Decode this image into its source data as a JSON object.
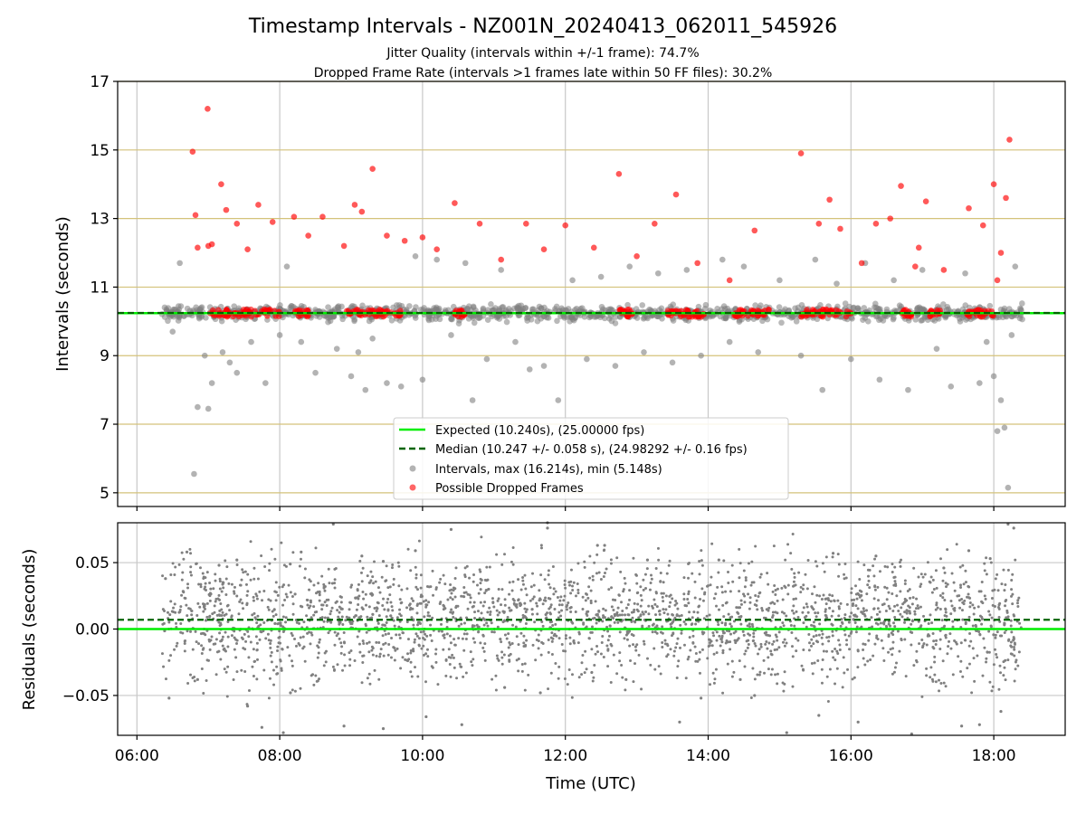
{
  "title": "Timestamp Intervals - NZ001N_20240413_062011_545926",
  "subtitle_lines": [
    "Jitter Quality (intervals within +/-1 frame): 74.7%",
    "Dropped Frame Rate (intervals >1 frames late within 50 FF files): 30.2%"
  ],
  "colors": {
    "expected": "#00ee00",
    "median": "#006400",
    "intervals": "#808080",
    "dropped": "#ff0000",
    "ygrid": "#d4c27a",
    "xgrid": "#c8c8c8"
  },
  "chart_data": [
    {
      "type": "scatter",
      "ylabel": "Intervals (seconds)",
      "ylim": [
        4.6,
        17.0
      ],
      "yticks": [
        "5",
        "7",
        "9",
        "11",
        "13",
        "15",
        "17"
      ],
      "ytick_values": [
        5,
        7,
        9,
        11,
        13,
        15,
        17
      ],
      "xlim_hours": [
        5.73,
        19.0
      ],
      "xtick_hours": [
        6,
        8,
        10,
        12,
        14,
        16,
        18
      ],
      "grid": true,
      "legend_position": "lower center",
      "legend": [
        "Expected (10.240s), (25.00000 fps)",
        "Median (10.247 +/- 0.058 s), (24.98292 +/- 0.16 fps)",
        "Intervals, max (16.214s), min (5.148s)",
        "Possible Dropped Frames"
      ],
      "series": [
        {
          "name": "Expected (10.240s), (25.00000 fps)",
          "kind": "hline",
          "y": 10.24
        },
        {
          "name": "Median (10.247 +/- 0.058 s), (24.98292 +/- 0.16 fps)",
          "kind": "hline-dashed",
          "y": 10.247
        },
        {
          "name": "Intervals, max (16.214s), min (5.148s)",
          "kind": "points",
          "points": [
            [
              6.6,
              11.7
            ],
            [
              6.8,
              5.55
            ],
            [
              6.85,
              7.5
            ],
            [
              7.0,
              7.45
            ],
            [
              7.05,
              8.2
            ],
            [
              6.95,
              9.0
            ],
            [
              7.2,
              9.1
            ],
            [
              7.4,
              8.5
            ],
            [
              7.6,
              9.4
            ],
            [
              7.8,
              8.2
            ],
            [
              8.0,
              9.6
            ],
            [
              8.1,
              11.6
            ],
            [
              8.3,
              9.4
            ],
            [
              8.5,
              8.5
            ],
            [
              8.8,
              9.2
            ],
            [
              9.0,
              8.4
            ],
            [
              9.2,
              8.0
            ],
            [
              9.3,
              9.5
            ],
            [
              9.5,
              8.2
            ],
            [
              9.7,
              8.1
            ],
            [
              9.9,
              11.9
            ],
            [
              10.0,
              8.3
            ],
            [
              10.2,
              11.8
            ],
            [
              10.4,
              9.6
            ],
            [
              10.6,
              11.7
            ],
            [
              10.7,
              7.7
            ],
            [
              10.9,
              8.9
            ],
            [
              11.1,
              11.5
            ],
            [
              11.3,
              9.4
            ],
            [
              11.5,
              8.6
            ],
            [
              11.7,
              8.7
            ],
            [
              11.9,
              7.7
            ],
            [
              12.1,
              11.2
            ],
            [
              12.3,
              8.9
            ],
            [
              12.5,
              11.3
            ],
            [
              12.7,
              8.7
            ],
            [
              12.9,
              11.6
            ],
            [
              13.1,
              9.1
            ],
            [
              13.3,
              11.4
            ],
            [
              13.5,
              8.8
            ],
            [
              13.7,
              11.5
            ],
            [
              13.9,
              9.0
            ],
            [
              14.2,
              11.8
            ],
            [
              14.3,
              9.4
            ],
            [
              14.5,
              11.6
            ],
            [
              14.7,
              9.1
            ],
            [
              15.0,
              11.2
            ],
            [
              15.3,
              9.0
            ],
            [
              15.5,
              11.8
            ],
            [
              15.6,
              8.0
            ],
            [
              15.8,
              11.1
            ],
            [
              16.0,
              8.9
            ],
            [
              16.2,
              11.7
            ],
            [
              16.4,
              8.3
            ],
            [
              16.6,
              11.2
            ],
            [
              16.8,
              8.0
            ],
            [
              17.0,
              11.5
            ],
            [
              17.2,
              9.2
            ],
            [
              17.4,
              8.1
            ],
            [
              17.6,
              11.4
            ],
            [
              17.8,
              8.2
            ],
            [
              17.9,
              9.4
            ],
            [
              18.0,
              8.4
            ],
            [
              18.05,
              6.8
            ],
            [
              18.1,
              7.7
            ],
            [
              18.15,
              6.9
            ],
            [
              18.2,
              5.15
            ],
            [
              18.3,
              11.6
            ],
            [
              18.25,
              9.6
            ],
            [
              6.5,
              9.7
            ],
            [
              7.3,
              8.8
            ],
            [
              9.1,
              9.1
            ]
          ]
        },
        {
          "name": "Possible Dropped Frames",
          "kind": "points",
          "points": [
            [
              6.78,
              14.95
            ],
            [
              6.82,
              13.1
            ],
            [
              6.85,
              12.15
            ],
            [
              6.99,
              16.2
            ],
            [
              7.05,
              12.25
            ],
            [
              7.18,
              14.0
            ],
            [
              7.25,
              13.25
            ],
            [
              7.4,
              12.85
            ],
            [
              7.55,
              12.1
            ],
            [
              7.7,
              13.4
            ],
            [
              7.9,
              12.9
            ],
            [
              8.2,
              13.05
            ],
            [
              8.4,
              12.5
            ],
            [
              8.6,
              13.05
            ],
            [
              8.9,
              12.2
            ],
            [
              9.05,
              13.4
            ],
            [
              9.3,
              14.45
            ],
            [
              9.5,
              12.5
            ],
            [
              9.75,
              12.35
            ],
            [
              10.0,
              12.45
            ],
            [
              10.2,
              12.1
            ],
            [
              10.45,
              13.45
            ],
            [
              10.8,
              12.85
            ],
            [
              11.1,
              11.8
            ],
            [
              11.45,
              12.85
            ],
            [
              11.7,
              12.1
            ],
            [
              12.0,
              12.8
            ],
            [
              12.4,
              12.15
            ],
            [
              12.75,
              14.3
            ],
            [
              13.0,
              11.9
            ],
            [
              13.25,
              12.85
            ],
            [
              13.55,
              13.7
            ],
            [
              13.85,
              11.7
            ],
            [
              14.3,
              11.2
            ],
            [
              14.65,
              12.65
            ],
            [
              15.3,
              14.9
            ],
            [
              15.55,
              12.85
            ],
            [
              15.7,
              13.55
            ],
            [
              15.85,
              12.7
            ],
            [
              16.15,
              11.7
            ],
            [
              16.35,
              12.85
            ],
            [
              16.55,
              13.0
            ],
            [
              16.7,
              13.95
            ],
            [
              16.95,
              12.15
            ],
            [
              17.05,
              13.5
            ],
            [
              17.3,
              11.5
            ],
            [
              17.65,
              13.3
            ],
            [
              17.85,
              12.8
            ],
            [
              18.0,
              14.0
            ],
            [
              18.1,
              12.0
            ],
            [
              18.17,
              13.6
            ],
            [
              18.22,
              15.3
            ],
            [
              18.05,
              11.2
            ],
            [
              7.0,
              12.2
            ],
            [
              9.15,
              13.2
            ],
            [
              16.9,
              11.6
            ]
          ]
        }
      ]
    },
    {
      "type": "scatter",
      "xlabel": "Time (UTC)",
      "ylabel": "Residuals (seconds)",
      "ylim": [
        -0.08,
        0.08
      ],
      "yticks": [
        "0.05",
        "0.00",
        "−0.05"
      ],
      "ytick_values": [
        0.05,
        0.0,
        -0.05
      ],
      "xlim_hours": [
        5.73,
        19.0
      ],
      "xtick_hours": [
        6,
        8,
        10,
        12,
        14,
        16,
        18
      ],
      "xticks": [
        "06:00",
        "08:00",
        "10:00",
        "12:00",
        "14:00",
        "16:00",
        "18:00"
      ],
      "grid": true,
      "series": [
        {
          "kind": "hline",
          "y": 0.0
        },
        {
          "kind": "hline-dashed",
          "y": 0.007
        },
        {
          "kind": "points",
          "points": [
            [
              6.4,
              0.038
            ],
            [
              6.45,
              -0.052
            ],
            [
              6.7,
              0.058
            ],
            [
              6.85,
              -0.038
            ],
            [
              7.15,
              0.048
            ],
            [
              7.4,
              0.052
            ],
            [
              7.55,
              -0.058
            ],
            [
              7.75,
              -0.074
            ],
            [
              8.05,
              -0.078
            ],
            [
              8.15,
              -0.048
            ],
            [
              8.3,
              0.058
            ],
            [
              8.75,
              0.079
            ],
            [
              8.9,
              -0.073
            ],
            [
              9.15,
              0.055
            ],
            [
              9.45,
              0.051
            ],
            [
              9.45,
              -0.075
            ],
            [
              9.9,
              0.059
            ],
            [
              10.05,
              -0.066
            ],
            [
              10.4,
              0.075
            ],
            [
              10.55,
              -0.072
            ],
            [
              11.15,
              -0.044
            ],
            [
              11.65,
              -0.048
            ],
            [
              11.75,
              0.076
            ],
            [
              11.75,
              0.08
            ],
            [
              12.45,
              0.063
            ],
            [
              12.55,
              0.063
            ],
            [
              12.85,
              -0.038
            ],
            [
              13.15,
              0.052
            ],
            [
              13.6,
              -0.07
            ],
            [
              13.9,
              -0.052
            ],
            [
              14.15,
              0.052
            ],
            [
              14.45,
              -0.038
            ],
            [
              14.65,
              -0.05
            ],
            [
              15.1,
              -0.078
            ],
            [
              15.55,
              -0.065
            ],
            [
              15.75,
              0.057
            ],
            [
              16.1,
              -0.07
            ],
            [
              16.35,
              0.055
            ],
            [
              16.85,
              -0.079
            ],
            [
              17.3,
              0.046
            ],
            [
              17.55,
              -0.073
            ],
            [
              17.65,
              0.059
            ],
            [
              17.8,
              -0.072
            ],
            [
              17.95,
              0.053
            ],
            [
              18.1,
              -0.062
            ],
            [
              18.2,
              0.079
            ],
            [
              18.28,
              0.076
            ],
            [
              18.38,
              -0.082
            ]
          ]
        }
      ]
    }
  ]
}
